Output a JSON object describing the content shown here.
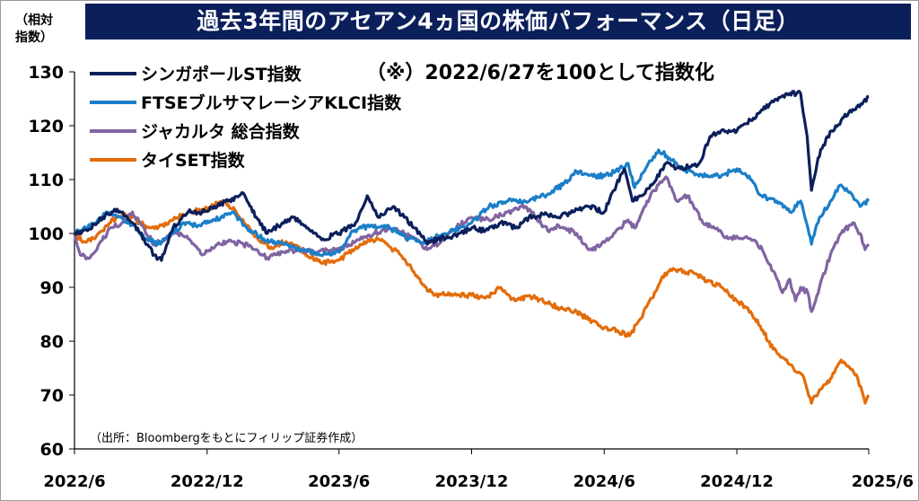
{
  "title": "過去3年間のアセアン4ヵ国の株価パフォーマンス（日足）",
  "unit_label_line1": "（相対",
  "unit_label_line2": "指数）",
  "note": "（※）2022/6/27を100として指数化",
  "source": "（出所：Bloombergをもとにフィリップ証券作成）",
  "chart_data": {
    "type": "line",
    "ylim": [
      60,
      130
    ],
    "yticks": [
      "60",
      "70",
      "80",
      "90",
      "100",
      "110",
      "120",
      "130"
    ],
    "xticks": [
      "2022/6",
      "2022/12",
      "2023/6",
      "2023/12",
      "2024/6",
      "2024/12",
      "2025/6"
    ],
    "xtick_dates": [
      "2022-06-27",
      "2022-12-27",
      "2023-06-27",
      "2023-12-27",
      "2024-06-27",
      "2024-12-27",
      "2025-06-27"
    ],
    "x_range": [
      "2022-06-27",
      "2025-06-27"
    ],
    "grid": false,
    "legend_position": "top-left",
    "series": [
      {
        "name": "シンガポールST指数",
        "color": "#0b1f5b",
        "points": [
          [
            "2022-06-27",
            100
          ],
          [
            "2022-07-15",
            100.5
          ],
          [
            "2022-08-05",
            103
          ],
          [
            "2022-08-25",
            104.5
          ],
          [
            "2022-09-15",
            102
          ],
          [
            "2022-10-01",
            99
          ],
          [
            "2022-10-15",
            96
          ],
          [
            "2022-10-25",
            95
          ],
          [
            "2022-11-10",
            101
          ],
          [
            "2022-12-01",
            104
          ],
          [
            "2022-12-20",
            104
          ],
          [
            "2023-01-10",
            105
          ],
          [
            "2023-01-25",
            106
          ],
          [
            "2023-02-15",
            107.5
          ],
          [
            "2023-03-05",
            103
          ],
          [
            "2023-03-20",
            100
          ],
          [
            "2023-04-10",
            102
          ],
          [
            "2023-04-25",
            103
          ],
          [
            "2023-05-15",
            101
          ],
          [
            "2023-06-05",
            99
          ],
          [
            "2023-06-27",
            100
          ],
          [
            "2023-07-20",
            102
          ],
          [
            "2023-08-05",
            107
          ],
          [
            "2023-08-20",
            103
          ],
          [
            "2023-09-10",
            105
          ],
          [
            "2023-09-25",
            103
          ],
          [
            "2023-10-10",
            101
          ],
          [
            "2023-10-27",
            98
          ],
          [
            "2023-11-10",
            99
          ],
          [
            "2023-12-01",
            99.5
          ],
          [
            "2023-12-27",
            101
          ],
          [
            "2024-01-15",
            100.5
          ],
          [
            "2024-02-05",
            102
          ],
          [
            "2024-02-25",
            101
          ],
          [
            "2024-03-15",
            103
          ],
          [
            "2024-04-05",
            103.5
          ],
          [
            "2024-04-25",
            103
          ],
          [
            "2024-05-15",
            104
          ],
          [
            "2024-06-05",
            105
          ],
          [
            "2024-06-27",
            104
          ],
          [
            "2024-07-10",
            108
          ],
          [
            "2024-07-25",
            112
          ],
          [
            "2024-08-05",
            106
          ],
          [
            "2024-08-15",
            107
          ],
          [
            "2024-09-01",
            109
          ],
          [
            "2024-09-20",
            113
          ],
          [
            "2024-10-10",
            112
          ],
          [
            "2024-11-05",
            113
          ],
          [
            "2024-11-20",
            118
          ],
          [
            "2024-12-05",
            119
          ],
          [
            "2024-12-27",
            119
          ],
          [
            "2025-01-15",
            121
          ],
          [
            "2025-02-10",
            124
          ],
          [
            "2025-03-10",
            126
          ],
          [
            "2025-03-25",
            126
          ],
          [
            "2025-04-03",
            118
          ],
          [
            "2025-04-09",
            108
          ],
          [
            "2025-04-18",
            114
          ],
          [
            "2025-05-01",
            118
          ],
          [
            "2025-05-20",
            121
          ],
          [
            "2025-06-05",
            123
          ],
          [
            "2025-06-18",
            124
          ],
          [
            "2025-06-27",
            125.5
          ]
        ]
      },
      {
        "name": "FTSEブルサマレーシアKLCI指数",
        "color": "#1a7fc8",
        "points": [
          [
            "2022-06-27",
            100
          ],
          [
            "2022-07-15",
            101
          ],
          [
            "2022-08-10",
            104
          ],
          [
            "2022-08-30",
            103
          ],
          [
            "2022-09-20",
            101
          ],
          [
            "2022-10-05",
            99
          ],
          [
            "2022-10-20",
            98
          ],
          [
            "2022-11-10",
            100
          ],
          [
            "2022-11-25",
            102
          ],
          [
            "2022-12-15",
            101.5
          ],
          [
            "2023-01-15",
            103
          ],
          [
            "2023-01-31",
            104
          ],
          [
            "2023-02-20",
            101
          ],
          [
            "2023-03-15",
            99
          ],
          [
            "2023-04-10",
            98
          ],
          [
            "2023-05-05",
            97
          ],
          [
            "2023-05-25",
            96.5
          ],
          [
            "2023-06-15",
            96
          ],
          [
            "2023-06-27",
            96.5
          ],
          [
            "2023-07-15",
            100.5
          ],
          [
            "2023-08-10",
            101.5
          ],
          [
            "2023-09-05",
            101
          ],
          [
            "2023-10-01",
            99
          ],
          [
            "2023-10-25",
            98.5
          ],
          [
            "2023-11-20",
            100
          ],
          [
            "2023-12-10",
            101
          ],
          [
            "2023-12-27",
            102
          ],
          [
            "2024-01-20",
            105
          ],
          [
            "2024-02-15",
            106
          ],
          [
            "2024-03-10",
            106
          ],
          [
            "2024-04-05",
            107
          ],
          [
            "2024-05-01",
            109
          ],
          [
            "2024-05-20",
            111.5
          ],
          [
            "2024-06-15",
            110.5
          ],
          [
            "2024-07-05",
            111
          ],
          [
            "2024-07-30",
            113
          ],
          [
            "2024-08-08",
            108.5
          ],
          [
            "2024-08-25",
            112.5
          ],
          [
            "2024-09-10",
            115.5
          ],
          [
            "2024-09-25",
            114
          ],
          [
            "2024-10-15",
            112
          ],
          [
            "2024-11-01",
            111
          ],
          [
            "2024-11-20",
            110.5
          ],
          [
            "2024-12-10",
            111
          ],
          [
            "2024-12-27",
            112
          ],
          [
            "2025-01-15",
            110
          ],
          [
            "2025-01-30",
            107
          ],
          [
            "2025-02-20",
            106
          ],
          [
            "2025-03-10",
            104
          ],
          [
            "2025-03-25",
            106
          ],
          [
            "2025-04-04",
            101
          ],
          [
            "2025-04-09",
            98
          ],
          [
            "2025-04-20",
            103
          ],
          [
            "2025-05-05",
            106
          ],
          [
            "2025-05-20",
            109
          ],
          [
            "2025-06-05",
            107
          ],
          [
            "2025-06-15",
            105
          ],
          [
            "2025-06-27",
            106
          ]
        ]
      },
      {
        "name": "ジャカルタ 総合指数",
        "color": "#8064a2",
        "points": [
          [
            "2022-06-27",
            100
          ],
          [
            "2022-07-05",
            96
          ],
          [
            "2022-07-15",
            95.5
          ],
          [
            "2022-07-28",
            97
          ],
          [
            "2022-08-15",
            101
          ],
          [
            "2022-09-01",
            102
          ],
          [
            "2022-09-15",
            104
          ],
          [
            "2022-10-01",
            101
          ],
          [
            "2022-10-15",
            98
          ],
          [
            "2022-10-31",
            99
          ],
          [
            "2022-11-15",
            100
          ],
          [
            "2022-12-01",
            99
          ],
          [
            "2022-12-20",
            96
          ],
          [
            "2023-01-10",
            98
          ],
          [
            "2023-01-30",
            98.5
          ],
          [
            "2023-02-15",
            98
          ],
          [
            "2023-03-05",
            97
          ],
          [
            "2023-03-20",
            95.5
          ],
          [
            "2023-04-10",
            96.5
          ],
          [
            "2023-05-01",
            97
          ],
          [
            "2023-05-25",
            96.5
          ],
          [
            "2023-06-27",
            97
          ],
          [
            "2023-07-20",
            98.5
          ],
          [
            "2023-08-15",
            100
          ],
          [
            "2023-09-05",
            101
          ],
          [
            "2023-09-25",
            100
          ],
          [
            "2023-10-15",
            98.5
          ],
          [
            "2023-10-27",
            97
          ],
          [
            "2023-11-15",
            98.5
          ],
          [
            "2023-12-10",
            101.5
          ],
          [
            "2023-12-27",
            103
          ],
          [
            "2024-01-20",
            102.5
          ],
          [
            "2024-02-15",
            104
          ],
          [
            "2024-03-10",
            105
          ],
          [
            "2024-03-25",
            103
          ],
          [
            "2024-04-10",
            100.5
          ],
          [
            "2024-04-25",
            101.5
          ],
          [
            "2024-05-20",
            100
          ],
          [
            "2024-06-05",
            97
          ],
          [
            "2024-06-20",
            97.5
          ],
          [
            "2024-07-10",
            100
          ],
          [
            "2024-07-30",
            102.5
          ],
          [
            "2024-08-08",
            101
          ],
          [
            "2024-08-25",
            106
          ],
          [
            "2024-09-10",
            109
          ],
          [
            "2024-09-20",
            110.5
          ],
          [
            "2024-10-05",
            106
          ],
          [
            "2024-10-20",
            107
          ],
          [
            "2024-11-10",
            102
          ],
          [
            "2024-11-30",
            101
          ],
          [
            "2024-12-15",
            99
          ],
          [
            "2024-12-27",
            99.5
          ],
          [
            "2025-01-15",
            99
          ],
          [
            "2025-01-31",
            97
          ],
          [
            "2025-02-15",
            93
          ],
          [
            "2025-02-28",
            89
          ],
          [
            "2025-03-10",
            91.5
          ],
          [
            "2025-03-18",
            87.5
          ],
          [
            "2025-03-25",
            90
          ],
          [
            "2025-04-04",
            89
          ],
          [
            "2025-04-09",
            85.5
          ],
          [
            "2025-04-20",
            90
          ],
          [
            "2025-05-05",
            96
          ],
          [
            "2025-05-20",
            100
          ],
          [
            "2025-06-05",
            102
          ],
          [
            "2025-06-15",
            100
          ],
          [
            "2025-06-22",
            97
          ],
          [
            "2025-06-27",
            98
          ]
        ]
      },
      {
        "name": "タイSET指数",
        "color": "#e36c0a",
        "points": [
          [
            "2022-06-27",
            100
          ],
          [
            "2022-07-10",
            98.5
          ],
          [
            "2022-07-25",
            99
          ],
          [
            "2022-08-10",
            101.5
          ],
          [
            "2022-08-25",
            103
          ],
          [
            "2022-09-10",
            103.5
          ],
          [
            "2022-09-25",
            102
          ],
          [
            "2022-10-10",
            101
          ],
          [
            "2022-10-25",
            101.5
          ],
          [
            "2022-11-10",
            102.5
          ],
          [
            "2022-12-01",
            104
          ],
          [
            "2022-12-27",
            104.5
          ],
          [
            "2023-01-10",
            105.5
          ],
          [
            "2023-01-20",
            106
          ],
          [
            "2023-02-05",
            104
          ],
          [
            "2023-02-20",
            101.5
          ],
          [
            "2023-03-10",
            98.5
          ],
          [
            "2023-03-25",
            97.5
          ],
          [
            "2023-04-15",
            98.5
          ],
          [
            "2023-05-05",
            97
          ],
          [
            "2023-05-20",
            95.5
          ],
          [
            "2023-06-05",
            94.5
          ],
          [
            "2023-06-27",
            95
          ],
          [
            "2023-07-15",
            97
          ],
          [
            "2023-08-01",
            98.5
          ],
          [
            "2023-08-20",
            99
          ],
          [
            "2023-09-05",
            97.5
          ],
          [
            "2023-09-20",
            96
          ],
          [
            "2023-10-05",
            93.5
          ],
          [
            "2023-10-20",
            90.5
          ],
          [
            "2023-11-05",
            88.5
          ],
          [
            "2023-11-25",
            89
          ],
          [
            "2023-12-10",
            88.5
          ],
          [
            "2023-12-27",
            88.5
          ],
          [
            "2024-01-15",
            88
          ],
          [
            "2024-02-05",
            90
          ],
          [
            "2024-02-25",
            87.5
          ],
          [
            "2024-03-15",
            88.5
          ],
          [
            "2024-04-10",
            87
          ],
          [
            "2024-05-01",
            86
          ],
          [
            "2024-05-20",
            85.5
          ],
          [
            "2024-06-05",
            84
          ],
          [
            "2024-06-27",
            82.5
          ],
          [
            "2024-07-15",
            82
          ],
          [
            "2024-08-01",
            81
          ],
          [
            "2024-08-15",
            84
          ],
          [
            "2024-09-01",
            88
          ],
          [
            "2024-09-15",
            92
          ],
          [
            "2024-09-30",
            93.5
          ],
          [
            "2024-10-15",
            93
          ],
          [
            "2024-11-01",
            92.5
          ],
          [
            "2024-11-15",
            91
          ],
          [
            "2024-12-01",
            90.5
          ],
          [
            "2024-12-15",
            89
          ],
          [
            "2024-12-27",
            87.5
          ],
          [
            "2025-01-15",
            85.5
          ],
          [
            "2025-02-01",
            82
          ],
          [
            "2025-02-15",
            78.5
          ],
          [
            "2025-02-28",
            77
          ],
          [
            "2025-03-15",
            75
          ],
          [
            "2025-03-30",
            73
          ],
          [
            "2025-04-09",
            68.5
          ],
          [
            "2025-04-20",
            71
          ],
          [
            "2025-05-05",
            73
          ],
          [
            "2025-05-20",
            76.5
          ],
          [
            "2025-06-01",
            75
          ],
          [
            "2025-06-12",
            73
          ],
          [
            "2025-06-22",
            68.5
          ],
          [
            "2025-06-27",
            70
          ]
        ]
      }
    ]
  }
}
